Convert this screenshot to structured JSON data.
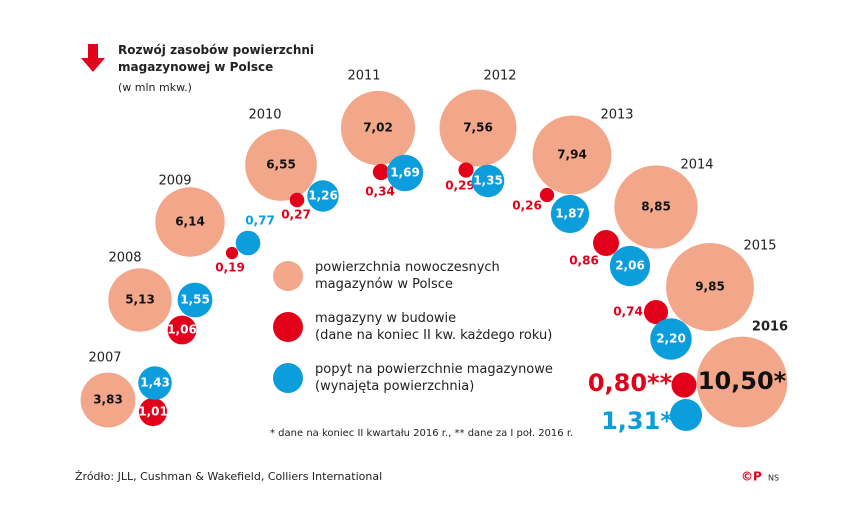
{
  "chart_data": {
    "type": "bubble",
    "title": "Rozwój zasobów powierzchni\nmagazynowej w Polsce",
    "subtitle": "(w mln mkw.)",
    "categories": [
      "2007",
      "2008",
      "2009",
      "2010",
      "2011",
      "2012",
      "2013",
      "2014",
      "2015",
      "2016"
    ],
    "series": [
      {
        "name": "powierzchnia nowoczesnych\nmagazynów w Polsce",
        "color": "#f3a78a",
        "values": [
          3.83,
          5.13,
          6.14,
          6.55,
          7.02,
          7.56,
          7.94,
          8.85,
          9.85,
          10.5
        ],
        "value_labels": [
          "3,83",
          "5,13",
          "6,14",
          "6,55",
          "7,02",
          "7,56",
          "7,94",
          "8,85",
          "9,85",
          "10,50*"
        ]
      },
      {
        "name": "magazyny w budowie\n(dane na koniec II kw. każdego roku)",
        "color": "#e2001a",
        "values": [
          1.01,
          1.06,
          0.19,
          0.27,
          0.34,
          0.29,
          0.26,
          0.86,
          0.74,
          0.8
        ],
        "value_labels": [
          "1,01",
          "1,06",
          "0,19",
          "0,27",
          "0,34",
          "0,29",
          "0,26",
          "0,86",
          "0,74",
          "0,80**"
        ]
      },
      {
        "name": "popyt na powierzchnie magazynowe\n(wynajęta powierzchnia)",
        "color": "#0b9ddc",
        "values": [
          1.43,
          1.55,
          0.77,
          1.26,
          1.69,
          1.35,
          1.87,
          2.06,
          2.2,
          1.31
        ],
        "value_labels": [
          "1,43",
          "1,55",
          "0,77",
          "1,26",
          "1,69",
          "1,35",
          "1,87",
          "2,06",
          "2,20",
          "1,31*"
        ]
      }
    ],
    "footnote": "* dane na koniec II kwartału 2016 r., ** dane za I poł. 2016 r.",
    "source": "Źródło: JLL, Cushman & Wakefield, Colliers International",
    "copyright": "©P",
    "credit": "NS"
  }
}
